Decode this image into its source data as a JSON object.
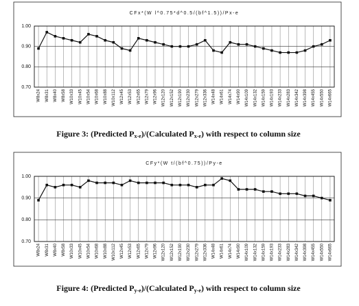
{
  "chart_data": [
    {
      "type": "line",
      "title": "CFx*(W l^0.75*d^0.5/(bf^1.5))/Px-e",
      "categories": [
        "W8x24",
        "W8x31",
        "W8x40",
        "W8x58",
        "W10x33",
        "W10x45",
        "W10x54",
        "W10x68",
        "W10x88",
        "W10x112",
        "W12x45",
        "W12x53",
        "W12x65",
        "W12x79",
        "W12x96",
        "W12x120",
        "W12x152",
        "W12x190",
        "W12x230",
        "W12x279",
        "W12x336",
        "W14x48",
        "W14x61",
        "W14x74",
        "W14x90",
        "W14x109",
        "W14x132",
        "W14x159",
        "W14x193",
        "W14x233",
        "W14x283",
        "W14x342",
        "W14x398",
        "W14x455",
        "W14x550",
        "W14x665"
      ],
      "series": [
        {
          "color": "#111111",
          "values": [
            0.89,
            0.97,
            0.95,
            0.94,
            0.93,
            0.92,
            0.96,
            0.95,
            0.93,
            0.92,
            0.89,
            0.88,
            0.94,
            0.93,
            0.92,
            0.91,
            0.9,
            0.9,
            0.9,
            0.91,
            0.93,
            0.88,
            0.87,
            0.92,
            0.91,
            0.91,
            0.9,
            0.89,
            0.88,
            0.87,
            0.87,
            0.87,
            0.88,
            0.9,
            0.91,
            0.93
          ]
        }
      ],
      "ylim": [
        0.7,
        1.0
      ],
      "yticks": [
        {
          "value": 0.7,
          "label": "0.70"
        },
        {
          "value": 0.8,
          "label": "0.80"
        },
        {
          "value": 0.9,
          "label": "0.90"
        },
        {
          "value": 1.0,
          "label": "1.00"
        }
      ],
      "grid": true
    },
    {
      "type": "line",
      "title": "CFy*(W t/(bf^0.75))/Py-e",
      "categories": [
        "W8x24",
        "W8x31",
        "W8x40",
        "W8x58",
        "W10x33",
        "W10x45",
        "W10x54",
        "W10x68",
        "W10x88",
        "W10x112",
        "W12x45",
        "W12x53",
        "W12x65",
        "W12x79",
        "W12x96",
        "W12x120",
        "W12x152",
        "W12x190",
        "W12x230",
        "W12x279",
        "W12x336",
        "W14x48",
        "W14x61",
        "W14x74",
        "W14x90",
        "W14x109",
        "W14x132",
        "W14x159",
        "W14x193",
        "W14x233",
        "W14x283",
        "W14x342",
        "W14x398",
        "W14x455",
        "W14x550",
        "W14x665"
      ],
      "series": [
        {
          "color": "#111111",
          "values": [
            0.89,
            0.96,
            0.95,
            0.96,
            0.96,
            0.95,
            0.98,
            0.97,
            0.97,
            0.97,
            0.96,
            0.98,
            0.97,
            0.97,
            0.97,
            0.97,
            0.96,
            0.96,
            0.96,
            0.95,
            0.96,
            0.96,
            0.99,
            0.98,
            0.94,
            0.94,
            0.94,
            0.93,
            0.93,
            0.92,
            0.92,
            0.92,
            0.91,
            0.91,
            0.9,
            0.89
          ]
        }
      ],
      "ylim": [
        0.7,
        1.0
      ],
      "yticks": [
        {
          "value": 0.7,
          "label": "0.70"
        },
        {
          "value": 0.8,
          "label": "0.80"
        },
        {
          "value": 0.9,
          "label": "0.90"
        },
        {
          "value": 1.0,
          "label": "1.00"
        }
      ],
      "grid": true
    }
  ],
  "captions": [
    [
      "Figure 3: (Predicted P",
      "x-e",
      ")/(Calculated P",
      "x-e",
      ") with respect to column size"
    ],
    [
      "Figure 4: (Predicted P",
      "y-e",
      ")/(Calculated P",
      "y-e",
      ") with respect to column size"
    ]
  ]
}
